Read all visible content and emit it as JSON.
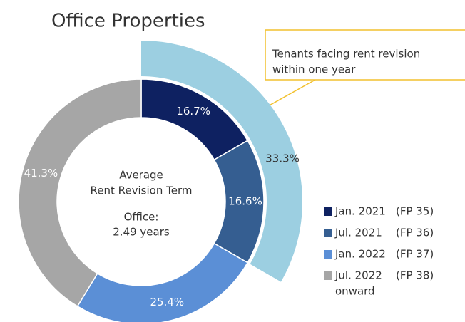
{
  "chart_data": {
    "type": "donut",
    "title": "Office Properties",
    "categories": [
      [
        "Jan. 2021",
        "(FP 35)"
      ],
      [
        "Jul. 2021",
        "(FP 36)"
      ],
      [
        "Jan. 2022",
        "(FP 37)"
      ],
      [
        "Jul. 2022",
        "(FP 38)",
        "onward"
      ]
    ],
    "values": [
      16.7,
      16.6,
      25.4,
      41.3
    ],
    "value_labels": [
      "16.7%",
      "16.6%",
      "25.4%",
      "41.3%"
    ],
    "colors": [
      "#0e2161",
      "#355e91",
      "#5b8fd6",
      "#a6a6a6"
    ],
    "center_text": [
      "Average",
      "Rent Revision Term",
      "Office:",
      "2.49 years"
    ],
    "outer_ring": {
      "value": 33.3,
      "value_label": "33.3%",
      "color": "#9ccfe1"
    },
    "annotation": [
      "Tenants facing rent revision",
      "within one year"
    ]
  }
}
